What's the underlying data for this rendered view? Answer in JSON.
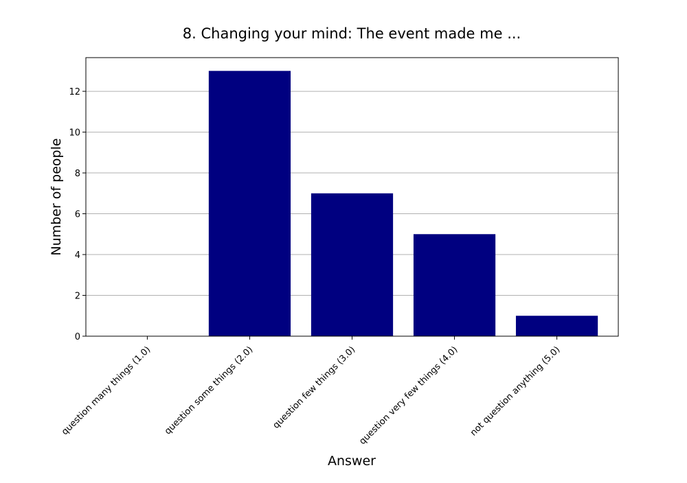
{
  "chart_data": {
    "type": "bar",
    "title": "8. Changing your mind: The event made me ...",
    "xlabel": "Answer",
    "ylabel": "Number of people",
    "categories": [
      "question many things (1.0)",
      "question some things (2.0)",
      "question few things (3.0)",
      "question very few things (4.0)",
      "not question anything (5.0)"
    ],
    "values": [
      0,
      13,
      7,
      5,
      1
    ],
    "ylim": [
      0,
      13.65
    ],
    "yticks": [
      "0",
      "2",
      "4",
      "6",
      "8",
      "10",
      "12"
    ],
    "grid": "horizontal",
    "legend": "none",
    "bar_color": "#000080",
    "grid_color": "#b0b0b0"
  }
}
